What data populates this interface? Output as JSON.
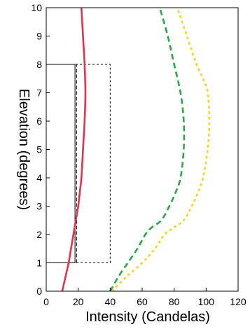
{
  "chart_data": {
    "type": "line",
    "title": "",
    "xlabel": "Intensity  (Candelas)",
    "ylabel": "Elevation (degrees)",
    "xlim": [
      0,
      120
    ],
    "ylim": [
      0,
      10
    ],
    "x_ticks": [
      0,
      20,
      40,
      60,
      80,
      100,
      120
    ],
    "y_ticks": [
      0,
      1,
      2,
      3,
      4,
      5,
      6,
      7,
      8,
      9,
      10
    ],
    "grid": false,
    "legend": "none",
    "series": [
      {
        "color": "#e0344f",
        "style": "solid",
        "points": [
          [
            10,
            0
          ],
          [
            12,
            0.5
          ],
          [
            14,
            1
          ],
          [
            15.5,
            1.5
          ],
          [
            17,
            2
          ],
          [
            18.5,
            2.5
          ],
          [
            20,
            3
          ],
          [
            21,
            3.5
          ],
          [
            22,
            4
          ],
          [
            23,
            5
          ],
          [
            24,
            6
          ],
          [
            24.5,
            7
          ],
          [
            24,
            8
          ],
          [
            23,
            9
          ],
          [
            22,
            10
          ]
        ]
      },
      {
        "color": "#2ba64a",
        "style": "dashed",
        "points": [
          [
            40,
            0
          ],
          [
            45,
            0.5
          ],
          [
            51,
            1
          ],
          [
            57,
            1.5
          ],
          [
            62,
            2
          ],
          [
            66,
            2.25
          ],
          [
            72,
            2.5
          ],
          [
            77,
            3
          ],
          [
            81,
            3.5
          ],
          [
            84,
            4
          ],
          [
            86,
            5
          ],
          [
            86,
            6
          ],
          [
            84,
            7
          ],
          [
            80,
            8
          ],
          [
            76,
            9
          ],
          [
            71,
            10
          ]
        ]
      },
      {
        "color": "#f5d42c",
        "style": "dotted",
        "points": [
          [
            41,
            0
          ],
          [
            50,
            0.5
          ],
          [
            60,
            1
          ],
          [
            68,
            1.5
          ],
          [
            74,
            2
          ],
          [
            80,
            2.25
          ],
          [
            86,
            2.5
          ],
          [
            91,
            3
          ],
          [
            95,
            3.5
          ],
          [
            98,
            4
          ],
          [
            101,
            5
          ],
          [
            102,
            6
          ],
          [
            101,
            7
          ],
          [
            98,
            7.5
          ],
          [
            94,
            8
          ],
          [
            88,
            9
          ],
          [
            82,
            10
          ]
        ]
      }
    ],
    "regions": [
      {
        "style": "solid",
        "x": [
          0,
          18
        ],
        "y": [
          1,
          8
        ]
      },
      {
        "style": "dashed",
        "x": [
          0,
          40
        ],
        "y": [
          1,
          8
        ]
      }
    ],
    "guides": [
      {
        "style": "dashed",
        "x": 19,
        "y": [
          1,
          8
        ]
      }
    ]
  }
}
